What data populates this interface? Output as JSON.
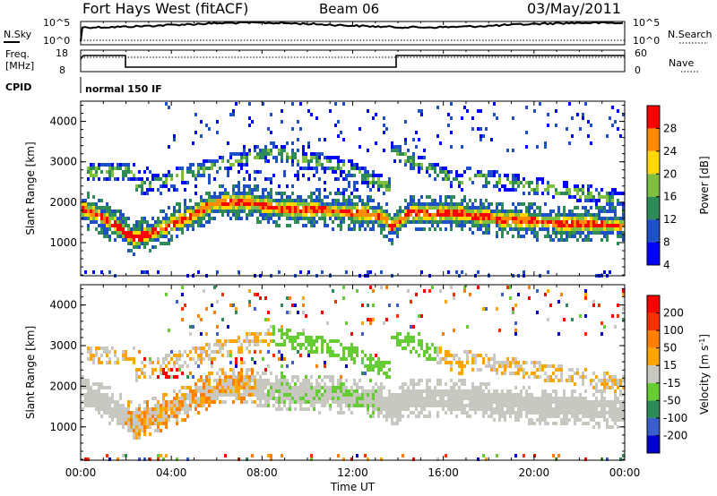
{
  "header": {
    "title": "Fort Hays West (fitACF)",
    "beam": "Beam 06",
    "date": "03/May/2011"
  },
  "top_panels": {
    "nsky_label": "N.Sky",
    "nsearch_label": "N.Search",
    "noise_hi_left": "10^5",
    "noise_lo_left": "10^0",
    "noise_hi_right": "10^5",
    "noise_lo_right": "10^0",
    "freq_label": "Freq.",
    "freq_unit": "[MHz]",
    "nave_label": "Nave",
    "freq_ticks": [
      "18",
      "8"
    ],
    "nave_ticks": [
      "60",
      "0"
    ],
    "cpid_label": "CPID",
    "cpid_value": "normal 150 IF"
  },
  "chart_data": [
    {
      "type": "heatmap",
      "name": "power",
      "ylabel": "Slant Range [km]",
      "yticks": [
        "4000",
        "3000",
        "2000",
        "1000"
      ],
      "ylim": [
        180,
        4500
      ],
      "colorbar_label": "Power [dB]",
      "colorbar_ticks": [
        "28",
        "24",
        "20",
        "16",
        "12",
        "8",
        "4"
      ],
      "colors": [
        "#0000ff",
        "#1e50c8",
        "#2e8b57",
        "#7fbf3f",
        "#ffd700",
        "#ff8c00",
        "#ff0000"
      ]
    },
    {
      "type": "heatmap",
      "name": "velocity",
      "ylabel": "Slant Range [km]",
      "yticks": [
        "4000",
        "3000",
        "2000",
        "1000"
      ],
      "ylim": [
        180,
        4500
      ],
      "colorbar_label": "Velocity [m s",
      "colorbar_label_sup": "-1",
      "colorbar_ticks": [
        "200",
        "100",
        "50",
        "15",
        "-15",
        "-50",
        "-100",
        "-200"
      ],
      "colors": [
        "#0000cc",
        "#3a5fcd",
        "#2e8b57",
        "#66cc33",
        "#c8c8c0",
        "#ffa500",
        "#ff7f00",
        "#ff3000",
        "#ff0000"
      ]
    }
  ],
  "xaxis": {
    "label": "Time UT",
    "ticks": [
      "00:00",
      "04:00",
      "08:00",
      "12:00",
      "16:00",
      "20:00",
      "00:00"
    ]
  }
}
